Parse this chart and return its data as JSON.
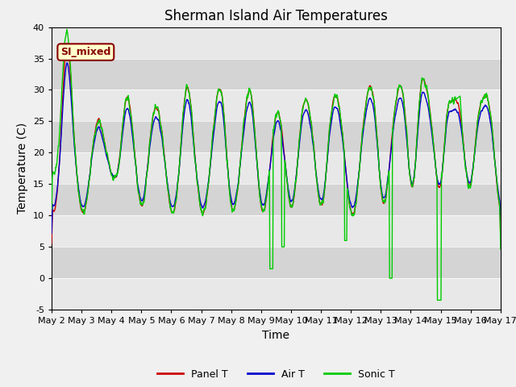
{
  "title": "Sherman Island Air Temperatures",
  "xlabel": "Time",
  "ylabel": "Temperature (C)",
  "ylim": [
    -5,
    40
  ],
  "xlim": [
    0,
    15
  ],
  "xtick_labels": [
    "May 2",
    "May 3",
    "May 4",
    "May 5",
    "May 6",
    "May 7",
    "May 8",
    "May 9",
    "May 10",
    "May 11",
    "May 12",
    "May 13",
    "May 14",
    "May 15",
    "May 16",
    "May 17"
  ],
  "xtick_positions": [
    0,
    1,
    2,
    3,
    4,
    5,
    6,
    7,
    8,
    9,
    10,
    11,
    12,
    13,
    14,
    15
  ],
  "ytick_positions": [
    -5,
    0,
    5,
    10,
    15,
    20,
    25,
    30,
    35,
    40
  ],
  "panel_color": "#cc0000",
  "air_color": "#0000cc",
  "sonic_color": "#00cc00",
  "legend_items": [
    "Panel T",
    "Air T",
    "Sonic T"
  ],
  "annotation_text": "SI_mixed",
  "annotation_bg": "#ffffcc",
  "annotation_border": "#880000",
  "title_fontsize": 12,
  "axis_label_fontsize": 10,
  "tick_fontsize": 8,
  "light_band_color": "#e8e8e8",
  "dark_band_color": "#d4d4d4",
  "fig_bg": "#f0f0f0"
}
